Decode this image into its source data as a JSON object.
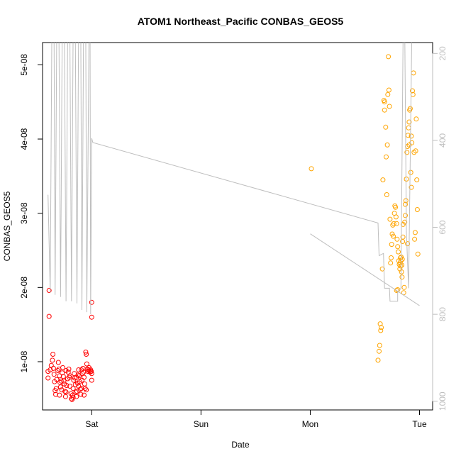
{
  "chart_data": {
    "type": "scatter",
    "title": "ATOM1 Northeast_Pacific CONBAS_GEOS5",
    "xlabel": "Date",
    "ylabel": "CONBAS_GEOS5",
    "x_unit": "days since Friday 00:00",
    "x_ticks": [
      {
        "value": 1,
        "label": "Sat"
      },
      {
        "value": 2,
        "label": "Sun"
      },
      {
        "value": 3,
        "label": "Mon"
      },
      {
        "value": 4,
        "label": "Tue"
      }
    ],
    "xlim": [
      0.55,
      4.12
    ],
    "ylim": [
      3.5e-09,
      5.3e-08
    ],
    "y_ticks": [
      {
        "value": 1e-08,
        "label": "1e-08"
      },
      {
        "value": 2e-08,
        "label": "2e-08"
      },
      {
        "value": 3e-08,
        "label": "3e-08"
      },
      {
        "value": 4e-08,
        "label": "4e-08"
      },
      {
        "value": 5e-08,
        "label": "5e-08"
      }
    ],
    "y2lim": [
      1020,
      175
    ],
    "y2_reversed": true,
    "y2_ticks": [
      {
        "value": 200,
        "label": "200"
      },
      {
        "value": 400,
        "label": "400"
      },
      {
        "value": 600,
        "label": "600"
      },
      {
        "value": 800,
        "label": "800"
      },
      {
        "value": 1000,
        "label": "1000"
      }
    ],
    "grid": false,
    "series": [
      {
        "color": "#ff0000",
        "marker": "open-circle",
        "axis": "left",
        "points": [
          [
            0.61,
            1.96e-08
          ],
          [
            0.61,
            1.61e-08
          ],
          [
            1.0,
            1.8e-08
          ],
          [
            1.0,
            1.6e-08
          ],
          [
            0.6,
            8.7e-09
          ],
          [
            0.62,
            8.9e-09
          ],
          [
            0.6,
            7.8e-09
          ],
          [
            0.63,
            9.5e-09
          ],
          [
            0.64,
            1.02e-08
          ],
          [
            0.645,
            1.1e-08
          ],
          [
            0.65,
            9.1e-09
          ],
          [
            0.655,
            8.3e-09
          ],
          [
            0.66,
            7.3e-09
          ],
          [
            0.665,
            6.1e-09
          ],
          [
            0.67,
            5.6e-09
          ],
          [
            0.675,
            6.4e-09
          ],
          [
            0.68,
            7.6e-09
          ],
          [
            0.69,
            8.8e-09
          ],
          [
            0.695,
            9.9e-09
          ],
          [
            0.7,
            9e-09
          ],
          [
            0.705,
            8.1e-09
          ],
          [
            0.71,
            7.2e-09
          ],
          [
            0.715,
            6.6e-09
          ],
          [
            0.72,
            7.4e-09
          ],
          [
            0.73,
            8.5e-09
          ],
          [
            0.735,
            9.2e-09
          ],
          [
            0.74,
            8e-09
          ],
          [
            0.75,
            7e-09
          ],
          [
            0.755,
            6e-09
          ],
          [
            0.76,
            5.3e-09
          ],
          [
            0.765,
            5.9e-09
          ],
          [
            0.77,
            6.8e-09
          ],
          [
            0.78,
            7.7e-09
          ],
          [
            0.785,
            8.6e-09
          ],
          [
            0.79,
            9e-09
          ],
          [
            0.795,
            7.9e-09
          ],
          [
            0.8,
            6.7e-09
          ],
          [
            0.81,
            5.7e-09
          ],
          [
            0.815,
            5e-09
          ],
          [
            0.82,
            4.9e-09
          ],
          [
            0.825,
            5.5e-09
          ],
          [
            0.83,
            6.4e-09
          ],
          [
            0.835,
            7.5e-09
          ],
          [
            0.84,
            8.4e-09
          ],
          [
            0.845,
            7.8e-09
          ],
          [
            0.85,
            6.9e-09
          ],
          [
            0.855,
            5.9e-09
          ],
          [
            0.86,
            5.3e-09
          ],
          [
            0.865,
            6e-09
          ],
          [
            0.87,
            7.1e-09
          ],
          [
            0.875,
            8.2e-09
          ],
          [
            0.88,
            8.9e-09
          ],
          [
            0.885,
            8.1e-09
          ],
          [
            0.89,
            7.3e-09
          ],
          [
            0.895,
            6.3e-09
          ],
          [
            0.9,
            5.6e-09
          ],
          [
            0.905,
            6.4e-09
          ],
          [
            0.91,
            7.5e-09
          ],
          [
            0.915,
            8.4e-09
          ],
          [
            0.92,
            9.1e-09
          ],
          [
            0.925,
            8.6e-09
          ],
          [
            0.93,
            7.9e-09
          ],
          [
            0.935,
            7e-09
          ],
          [
            0.94,
            6.4e-09
          ],
          [
            0.945,
            1.13e-08
          ],
          [
            0.95,
            1.1e-08
          ],
          [
            0.955,
            9.7e-09
          ],
          [
            0.96,
            9e-09
          ],
          [
            0.965,
            8.7e-09
          ],
          [
            0.97,
            8.9e-09
          ],
          [
            0.975,
            9.2e-09
          ],
          [
            0.98,
            8.8e-09
          ],
          [
            0.985,
            8.6e-09
          ],
          [
            0.99,
            8.9e-09
          ],
          [
            0.995,
            8.7e-09
          ],
          [
            1.0,
            8.4e-09
          ],
          [
            1.0,
            7.5e-09
          ],
          [
            0.705,
            5.5e-09
          ],
          [
            0.725,
            6.2e-09
          ],
          [
            0.745,
            7.4e-09
          ],
          [
            0.765,
            8.8e-09
          ],
          [
            0.8,
            8.1e-09
          ],
          [
            0.83,
            5.2e-09
          ],
          [
            0.86,
            7.9e-09
          ],
          [
            0.88,
            6.7e-09
          ],
          [
            0.905,
            8.9e-09
          ],
          [
            0.93,
            5.5e-09
          ],
          [
            0.95,
            6.2e-09
          ]
        ]
      },
      {
        "color": "#ffa500",
        "marker": "open-circle",
        "axis": "left",
        "points": [
          [
            3.01,
            3.6e-08
          ],
          [
            3.62,
            1.02e-08
          ],
          [
            3.63,
            1.14e-08
          ],
          [
            3.635,
            1.22e-08
          ],
          [
            3.64,
            1.51e-08
          ],
          [
            3.65,
            1.46e-08
          ],
          [
            3.645,
            1.42e-08
          ],
          [
            3.66,
            2.25e-08
          ],
          [
            3.665,
            3.45e-08
          ],
          [
            3.675,
            4.52e-08
          ],
          [
            3.68,
            4.5e-08
          ],
          [
            3.68,
            4.39e-08
          ],
          [
            3.69,
            4.16e-08
          ],
          [
            3.695,
            3.76e-08
          ],
          [
            3.7,
            3.25e-08
          ],
          [
            3.705,
            3.92e-08
          ],
          [
            3.71,
            4.6e-08
          ],
          [
            3.72,
            4.66e-08
          ],
          [
            3.715,
            5.11e-08
          ],
          [
            3.725,
            4.44e-08
          ],
          [
            3.73,
            2.92e-08
          ],
          [
            3.735,
            2.33e-08
          ],
          [
            3.74,
            2.4e-08
          ],
          [
            3.745,
            2.58e-08
          ],
          [
            3.75,
            2.72e-08
          ],
          [
            3.755,
            2.84e-08
          ],
          [
            3.76,
            2.69e-08
          ],
          [
            3.765,
            2.86e-08
          ],
          [
            3.77,
            3e-08
          ],
          [
            3.775,
            3.1e-08
          ],
          [
            3.78,
            3.08e-08
          ],
          [
            3.785,
            2.95e-08
          ],
          [
            3.79,
            2.86e-08
          ],
          [
            3.795,
            2.65e-08
          ],
          [
            3.8,
            2.55e-08
          ],
          [
            3.805,
            2.48e-08
          ],
          [
            3.81,
            2.36e-08
          ],
          [
            3.815,
            2.31e-08
          ],
          [
            3.82,
            2.25e-08
          ],
          [
            3.822,
            2.33e-08
          ],
          [
            3.825,
            2.4e-08
          ],
          [
            3.828,
            2.29e-08
          ],
          [
            3.83,
            2.36e-08
          ],
          [
            3.832,
            2.41e-08
          ],
          [
            3.835,
            2.21e-08
          ],
          [
            3.838,
            2.3e-08
          ],
          [
            3.84,
            2.14e-08
          ],
          [
            3.842,
            2.38e-08
          ],
          [
            3.845,
            2.62e-08
          ],
          [
            3.848,
            2.68e-08
          ],
          [
            3.85,
            2.85e-08
          ],
          [
            3.855,
            1.93e-08
          ],
          [
            3.86,
            2e-08
          ],
          [
            3.865,
            2.88e-08
          ],
          [
            3.87,
            2.97e-08
          ],
          [
            3.875,
            3.17e-08
          ],
          [
            3.88,
            3.46e-08
          ],
          [
            3.885,
            3.82e-08
          ],
          [
            3.89,
            3.9e-08
          ],
          [
            3.895,
            4.05e-08
          ],
          [
            3.9,
            4.15e-08
          ],
          [
            3.905,
            4.23e-08
          ],
          [
            3.91,
            4.39e-08
          ],
          [
            3.915,
            4.41e-08
          ],
          [
            3.92,
            3.55e-08
          ],
          [
            3.925,
            3.35e-08
          ],
          [
            3.93,
            3.95e-08
          ],
          [
            3.935,
            4.65e-08
          ],
          [
            3.94,
            4.6e-08
          ],
          [
            3.945,
            4.89e-08
          ],
          [
            3.95,
            3.82e-08
          ],
          [
            3.955,
            2.65e-08
          ],
          [
            3.96,
            2.74e-08
          ],
          [
            3.965,
            3.84e-08
          ],
          [
            3.97,
            4.27e-08
          ],
          [
            3.975,
            3.45e-08
          ],
          [
            3.98,
            3.05e-08
          ],
          [
            3.985,
            2.45e-08
          ],
          [
            3.8,
            1.97e-08
          ],
          [
            3.79,
            1.96e-08
          ],
          [
            3.905,
            3.92e-08
          ],
          [
            3.925,
            4.04e-08
          ],
          [
            3.89,
            2.59e-08
          ],
          [
            3.87,
            3.12e-08
          ]
        ]
      },
      {
        "color": "#bebebe",
        "marker": "line",
        "axis": "right",
        "segments": [
          [
            [
              0.6,
              525
            ],
            [
              0.62,
              750
            ],
            [
              0.635,
              150
            ],
            [
              0.655,
              150
            ],
            [
              0.665,
              755
            ],
            [
              0.68,
              150
            ],
            [
              0.7,
              150
            ],
            [
              0.715,
              760
            ],
            [
              0.73,
              150
            ],
            [
              0.75,
              150
            ],
            [
              0.765,
              770
            ],
            [
              0.78,
              150
            ],
            [
              0.8,
              150
            ],
            [
              0.815,
              770
            ],
            [
              0.83,
              150
            ],
            [
              0.85,
              150
            ],
            [
              0.865,
              775
            ],
            [
              0.88,
              150
            ],
            [
              0.9,
              150
            ],
            [
              0.91,
              790
            ],
            [
              0.925,
              150
            ],
            [
              0.945,
              150
            ],
            [
              0.955,
              795
            ],
            [
              0.975,
              150
            ],
            [
              0.985,
              150
            ],
            [
              0.99,
              800
            ],
            [
              1.0,
              395
            ],
            [
              1.01,
              405
            ],
            [
              3.62,
              590
            ],
            [
              3.63,
              665
            ],
            [
              3.67,
              660
            ],
            [
              3.68,
              740
            ],
            [
              3.725,
              740
            ],
            [
              3.73,
              770
            ],
            [
              3.8,
              770
            ],
            [
              3.8,
              750
            ],
            [
              3.83,
              740
            ],
            [
              3.85,
              150
            ],
            [
              3.865,
              150
            ],
            [
              3.88,
              610
            ],
            [
              3.9,
              740
            ],
            [
              3.93,
              150
            ]
          ],
          [
            [
              3.0,
              615
            ],
            [
              4.0,
              780
            ]
          ]
        ]
      }
    ]
  }
}
